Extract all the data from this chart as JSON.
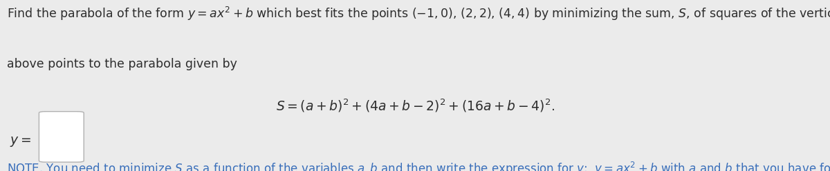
{
  "background_color": "#ebebeb",
  "text_color": "#2d2d2d",
  "note_color": "#3a6fba",
  "line1": "Find the parabola of the form $y = ax^2 + b$ which best fits the points $(-1, 0)$, $(2, 2)$, $(4, 4)$ by minimizing the sum, $S$, of squares of the vertical distances from the",
  "line2": "above points to the parabola given by",
  "equation": "$S = (a + b)^2 + (4a + b - 2)^2 + (16a + b - 4)^2.$",
  "y_label": "$y =$",
  "note_text": "NOTE. You need to minimize $S$ as a function of the variables $a, b$ and then write the expression for $y$:  $y = ax^2 + b$ with $a$ and $b$ that you have found.",
  "font_size_main": 12.5,
  "font_size_eq": 13.5,
  "font_size_note": 12.0
}
